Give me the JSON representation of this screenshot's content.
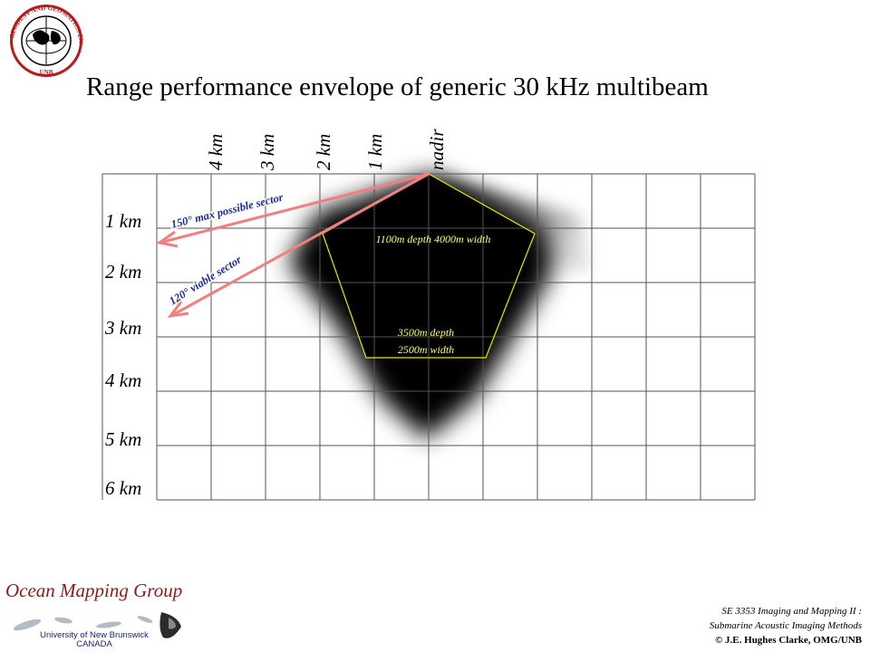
{
  "slide": {
    "title": "Range performance envelope of generic 30 kHz multibeam"
  },
  "logos": {
    "unb_seal": {
      "icon": "unb-seal-icon",
      "text_ring": "GEODESY AND GEOMATICS ENGINEERING",
      "text_bottom": "UNB"
    },
    "omg": {
      "name": "Ocean Mapping Group",
      "university": "University of New Brunswick",
      "country": "CANADA"
    }
  },
  "diagram": {
    "horizontal_labels": [
      "4 km",
      "3 km",
      "2 km",
      "1 km",
      "nadir"
    ],
    "depth_labels": [
      "1 km",
      "2 km",
      "3 km",
      "4 km",
      "5 km",
      "6 km"
    ],
    "sectors": [
      {
        "label": "150° max possible sector",
        "angle_deg": 150
      },
      {
        "label": "120° viable sector",
        "angle_deg": 120
      }
    ],
    "envelope_annotations": {
      "upper": "1100m depth 4000m width",
      "lower_line1": "3500m depth",
      "lower_line2": "2500m width"
    },
    "colors": {
      "grid": "#555555",
      "sector_arrows": "#f08080",
      "sector_text": "#1f2a9c",
      "envelope_outline": "#e6e600",
      "envelope_text": "#ffff66",
      "coverage_fill": "#000000"
    }
  },
  "footer": {
    "line1": "SE 3353 Imaging and Mapping II :",
    "line2": "Submarine Acoustic Imaging Methods",
    "line3": "© J.E. Hughes Clarke, OMG/UNB"
  }
}
